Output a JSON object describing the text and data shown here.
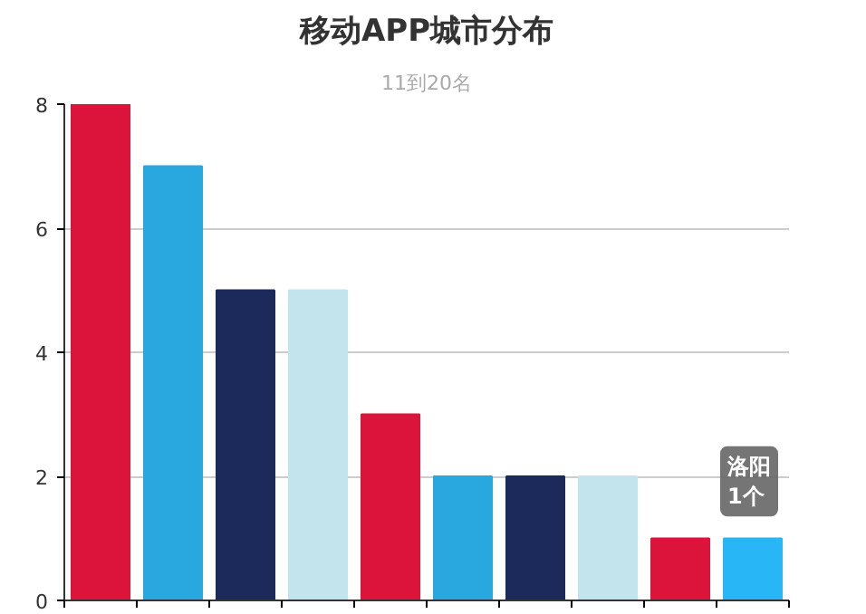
{
  "chart_data": {
    "type": "bar",
    "title": "移动APP城市分布",
    "subtitle": "11到20名",
    "categories": [
      null,
      null,
      null,
      null,
      null,
      null,
      null,
      null,
      null,
      null
    ],
    "values": [
      8,
      7,
      5,
      5,
      3,
      2,
      2,
      2,
      1,
      1
    ],
    "colors": [
      "#dc143c",
      "#29a8e0",
      "#1b2a5b",
      "#c3e4ec",
      "#dc143c",
      "#29a8e0",
      "#1b2a5b",
      "#c3e4ec",
      "#dc143c",
      "#29b6f6"
    ],
    "ylim": [
      0,
      8
    ],
    "yticks": [
      0,
      2,
      4,
      6,
      8
    ],
    "grid": "y",
    "annotations": [
      "洛阳\n1个"
    ]
  }
}
